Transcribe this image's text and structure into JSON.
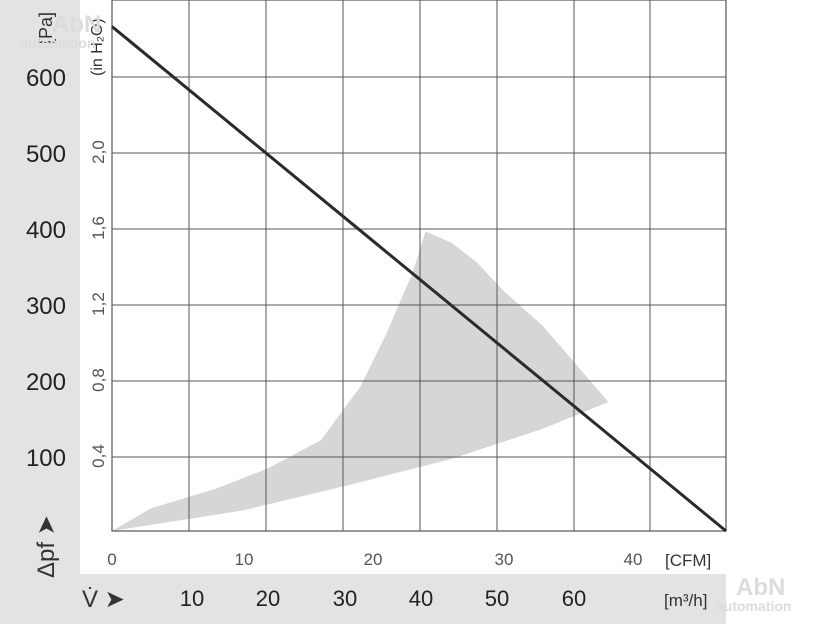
{
  "chart_data": {
    "type": "line",
    "series": [
      {
        "points": [
          [
            0,
            665
          ],
          [
            47,
            0
          ]
        ]
      }
    ],
    "operating_range": {
      "points": [
        [
          0,
          0
        ],
        [
          3,
          30
        ],
        [
          8,
          56
        ],
        [
          12,
          83
        ],
        [
          16,
          120
        ],
        [
          19,
          190
        ],
        [
          21,
          260
        ],
        [
          23,
          340
        ],
        [
          24,
          395
        ],
        [
          26,
          380
        ],
        [
          28,
          353
        ],
        [
          30,
          316
        ],
        [
          33,
          270
        ],
        [
          35,
          230
        ],
        [
          38,
          170
        ],
        [
          33,
          135
        ],
        [
          26,
          95
        ],
        [
          18,
          60
        ],
        [
          10,
          27
        ],
        [
          0,
          0
        ]
      ]
    },
    "x_cfm": {
      "ticks": [
        0,
        10,
        20,
        30,
        40
      ],
      "unit": "[CFM]",
      "range": [
        0,
        47
      ]
    },
    "x_m3h": {
      "ticks": [
        10,
        20,
        30,
        40,
        50,
        60
      ],
      "unit": "[m³/h]",
      "symbol": "V̇ ➤"
    },
    "y_pa": {
      "ticks": [
        100,
        200,
        300,
        400,
        500,
        600
      ],
      "unit": "[Pa]",
      "symbol": "Δpf ➤",
      "range": [
        0,
        700
      ]
    },
    "y_inh2o": {
      "ticks": [
        "0,4",
        "0,8",
        "1,2",
        "1,6",
        "2,0"
      ],
      "unit": "(in H₂O)"
    },
    "grid": true,
    "watermark": [
      "AbN",
      "automation"
    ],
    "colors": {
      "line": "#2b2b2b",
      "region": "#d6d6d6",
      "grid": "#555555",
      "band": "#e3e3e3"
    }
  }
}
